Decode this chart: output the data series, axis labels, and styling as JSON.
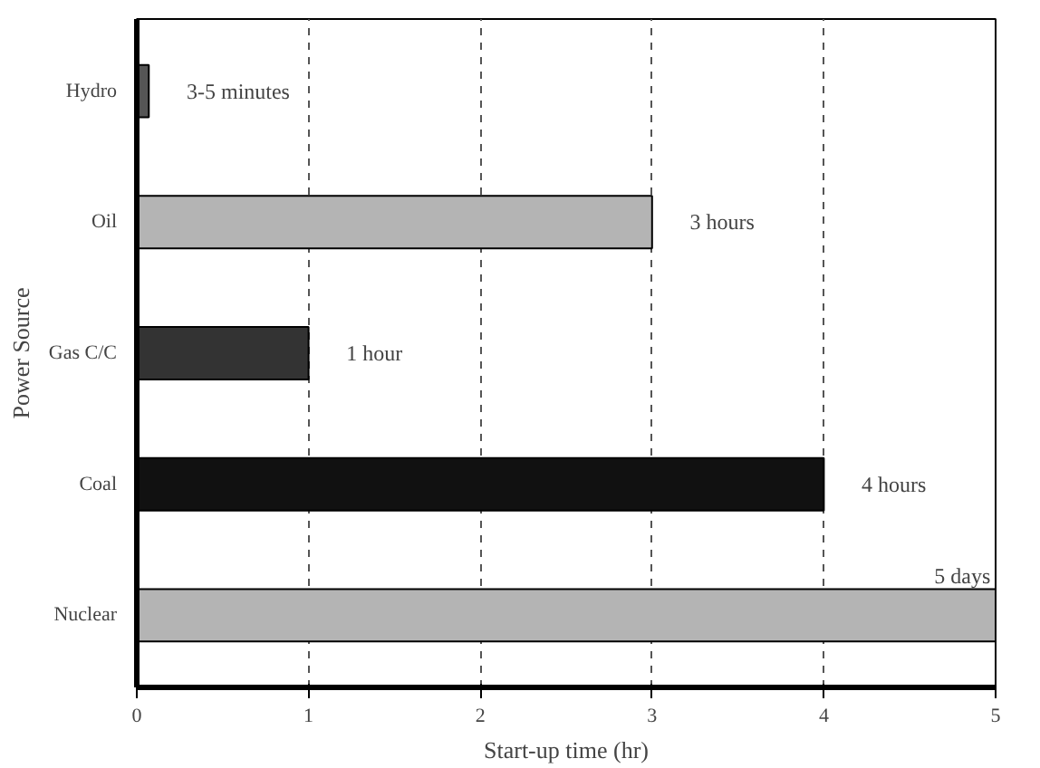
{
  "chart_data": {
    "type": "bar",
    "orientation": "horizontal",
    "xlabel": "Start-up time (hr)",
    "ylabel": "Power Source",
    "categories": [
      "Hydro",
      "Oil",
      "Gas C/C",
      "Coal",
      "Nuclear"
    ],
    "values": [
      0.07,
      3,
      1,
      4,
      5
    ],
    "colors": [
      "#555555",
      "#b4b4b4",
      "#333333",
      "#111111",
      "#b4b4b4"
    ],
    "value_labels": [
      "3-5 minutes",
      "3 hours",
      "1 hour",
      "4 hours",
      "5 days"
    ],
    "xlim": [
      0,
      5
    ],
    "xticks": [
      0,
      1,
      2,
      3,
      4,
      5
    ],
    "grid": "x",
    "line_style": "dashed"
  }
}
